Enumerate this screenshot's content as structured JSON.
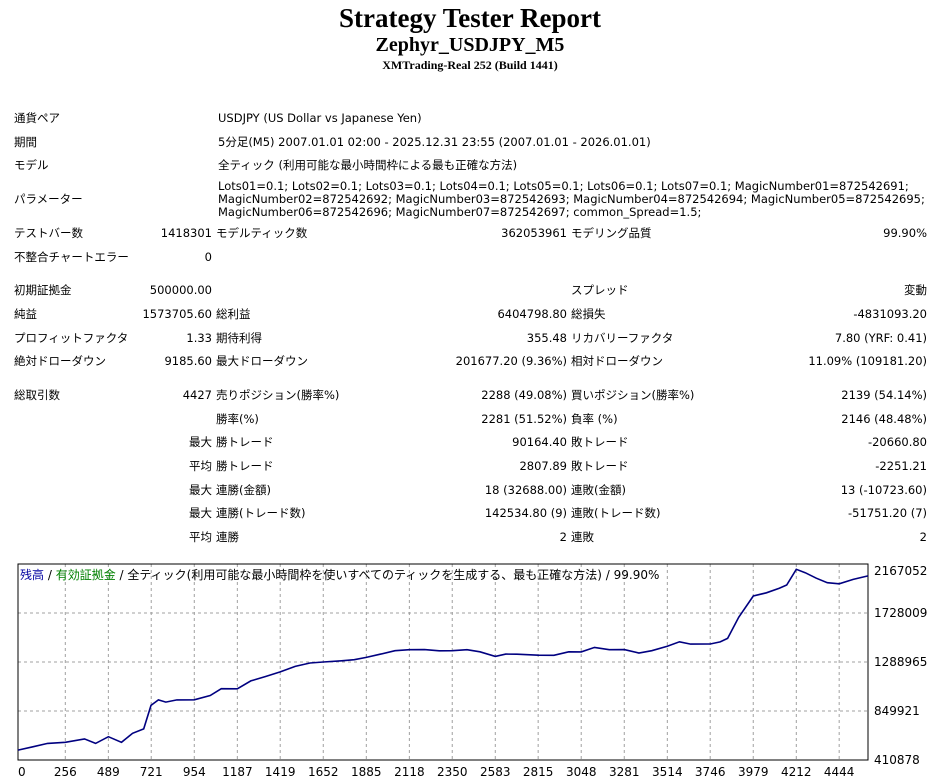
{
  "header": {
    "title": "Strategy Tester Report",
    "ea_name": "Zephyr_USDJPY_M5",
    "server": "XMTrading-Real 252 (Build 1441)"
  },
  "report": {
    "symbol_label": "通貨ペア",
    "symbol_value": "USDJPY (US Dollar vs Japanese Yen)",
    "period_label": "期間",
    "period_value": "5分足(M5) 2007.01.01 02:00 - 2025.12.31 23:55 (2007.01.01 - 2026.01.01)",
    "model_label": "モデル",
    "model_value": "全ティック (利用可能な最小時間枠による最も正確な方法)",
    "params_label": "パラメーター",
    "params_value": "Lots01=0.1; Lots02=0.1; Lots03=0.1; Lots04=0.1; Lots05=0.1; Lots06=0.1; Lots07=0.1; MagicNumber01=872542691; MagicNumber02=872542692; MagicNumber03=872542693; MagicNumber04=872542694; MagicNumber05=872542695; MagicNumber06=872542696; MagicNumber07=872542697; common_Spread=1.5;",
    "bars_label": "テストバー数",
    "bars_value": "1418301",
    "ticks_label": "モデルティック数",
    "ticks_value": "362053961",
    "quality_label": "モデリング品質",
    "quality_value": "99.90%",
    "mismatch_label": "不整合チャートエラー",
    "mismatch_value": "0",
    "deposit_label": "初期証拠金",
    "deposit_value": "500000.00",
    "spread_label": "スプレッド",
    "spread_value": "変動",
    "netprofit_label": "純益",
    "netprofit_value": "1573705.60",
    "grossprofit_label": "総利益",
    "grossprofit_value": "6404798.80",
    "grossloss_label": "総損失",
    "grossloss_value": "-4831093.20",
    "pf_label": "プロフィットファクタ",
    "pf_value": "1.33",
    "payoff_label": "期待利得",
    "payoff_value": "355.48",
    "rf_label": "リカバリーファクタ",
    "rf_value": "7.80 (YRF: 0.41)",
    "absdd_label": "絶対ドローダウン",
    "absdd_value": "9185.60",
    "maxdd_label": "最大ドローダウン",
    "maxdd_value": "201677.20 (9.36%)",
    "reldd_label": "相対ドローダウン",
    "reldd_value": "11.09% (109181.20)",
    "trades_label": "総取引数",
    "trades_value": "4427",
    "short_label": "売りポジション(勝率%)",
    "short_value": "2288 (49.08%)",
    "long_label": "買いポジション(勝率%)",
    "long_value": "2139 (54.14%)",
    "winrate_label": "勝率(%)",
    "winrate_value": "2281 (51.52%)",
    "lossrate_label": "負率 (%)",
    "lossrate_value": "2146 (48.48%)",
    "max_label": "最大",
    "avg_label": "平均",
    "win_trade_label": "勝トレード",
    "loss_trade_label": "敗トレード",
    "largest_win_value": "90164.40",
    "largest_loss_value": "-20660.80",
    "avg_win_value": "2807.89",
    "avg_loss_value": "-2251.21",
    "cons_wins_amt_label": "連勝(金額)",
    "cons_wins_amt_value": "18 (32688.00)",
    "cons_losses_amt_label": "連敗(金額)",
    "cons_losses_amt_value": "13 (-10723.60)",
    "cons_wins_cnt_label": "連勝(トレード数)",
    "cons_wins_cnt_value": "142534.80 (9)",
    "cons_losses_cnt_label": "連敗(トレード数)",
    "cons_losses_cnt_value": "-51751.20 (7)",
    "avg_cons_wins_label": "連勝",
    "avg_cons_wins_value": "2",
    "avg_cons_losses_label": "連敗",
    "avg_cons_losses_value": "2"
  },
  "chart_legend": {
    "balance": "残高",
    "sep1": " / ",
    "equity": "有効証拠金",
    "rest": " / 全ティック(利用可能な最小時間枠を使いすべてのティックを生成する、最も正確な方法) / 99.90%"
  },
  "chart_data": {
    "type": "line",
    "title": "",
    "xlabel": "",
    "ylabel": "",
    "x_ticks": [
      "0",
      "256",
      "489",
      "721",
      "954",
      "1187",
      "1419",
      "1652",
      "1885",
      "2118",
      "2350",
      "2583",
      "2815",
      "3048",
      "3281",
      "3514",
      "3746",
      "3979",
      "4212",
      "4444"
    ],
    "y_ticks": [
      "2167052",
      "1728009",
      "1288965",
      "849921",
      "410878"
    ],
    "xlim": [
      0,
      4600
    ],
    "ylim": [
      410878,
      2167052
    ],
    "grid": true,
    "line_color": "#000080",
    "series": [
      {
        "x": [
          0,
          80,
          160,
          256,
          360,
          420,
          489,
          560,
          620,
          680,
          720,
          760,
          800,
          860,
          954,
          1040,
          1100,
          1187,
          1260,
          1340,
          1419,
          1500,
          1580,
          1652,
          1750,
          1820,
          1885,
          1960,
          2040,
          2118,
          2200,
          2280,
          2350,
          2430,
          2500,
          2583,
          2640,
          2700,
          2815,
          2900,
          2980,
          3048,
          3120,
          3200,
          3281,
          3360,
          3430,
          3514,
          3580,
          3640,
          3746,
          3800,
          3840,
          3900,
          3979,
          4050,
          4120,
          4160,
          4212,
          4260,
          4320,
          4380,
          4444,
          4520,
          4600
        ],
        "values": [
          500000,
          540000,
          560000,
          580000,
          600000,
          570000,
          620000,
          580000,
          650000,
          700000,
          900000,
          960000,
          930000,
          960000,
          950000,
          1000000,
          1050000,
          1060000,
          1120000,
          1170000,
          1200000,
          1260000,
          1280000,
          1300000,
          1300000,
          1320000,
          1330000,
          1370000,
          1390000,
          1410000,
          1400000,
          1400000,
          1390000,
          1410000,
          1380000,
          1350000,
          1360000,
          1370000,
          1350000,
          1360000,
          1380000,
          1390000,
          1420000,
          1410000,
          1400000,
          1380000,
          1390000,
          1440000,
          1470000,
          1460000,
          1450000,
          1480000,
          1500000,
          1700000,
          1880000,
          1920000,
          1950000,
          1990000,
          2120000,
          2100000,
          2040000,
          2010000,
          1990000,
          2040000,
          2060000
        ]
      }
    ]
  }
}
